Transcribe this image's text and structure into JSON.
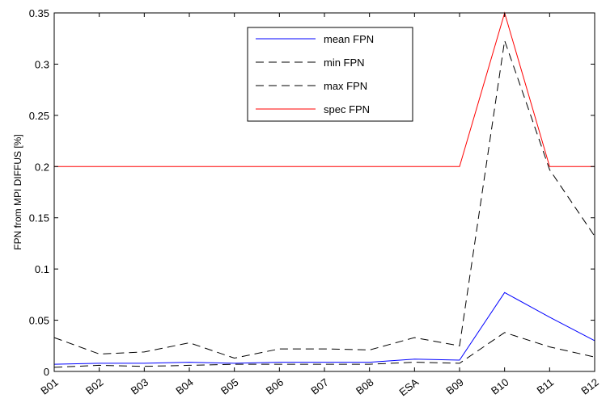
{
  "chart_data": {
    "type": "line",
    "categories": [
      "B01",
      "B02",
      "B03",
      "B04",
      "B05",
      "B06",
      "B07",
      "B08",
      "ESA",
      "B09",
      "B10",
      "B11",
      "B12"
    ],
    "ylabel": "FPN from MPI DIFFUS [%]",
    "xlabel": "",
    "title": "",
    "ylim": [
      0,
      0.35
    ],
    "yticks": [
      0,
      0.05,
      0.1,
      0.15,
      0.2,
      0.25,
      0.3,
      0.35
    ],
    "ytick_labels": [
      "0",
      "0.05",
      "0.1",
      "0.15",
      "0.2",
      "0.25",
      "0.3",
      "0.35"
    ],
    "grid": false,
    "legend_position": "top-center",
    "series": [
      {
        "name": "mean FPN",
        "color": "#0000ff",
        "dash": "solid",
        "values": [
          0.007,
          0.008,
          0.008,
          0.009,
          0.008,
          0.009,
          0.009,
          0.009,
          0.012,
          0.011,
          0.077,
          0.053,
          0.03
        ]
      },
      {
        "name": "min FPN",
        "color": "#000000",
        "dash": "dashed",
        "values": [
          0.004,
          0.006,
          0.005,
          0.006,
          0.007,
          0.007,
          0.007,
          0.007,
          0.009,
          0.008,
          0.038,
          0.024,
          0.014
        ]
      },
      {
        "name": "max FPN",
        "color": "#000000",
        "dash": "dashed",
        "values": [
          0.033,
          0.017,
          0.019,
          0.028,
          0.013,
          0.022,
          0.022,
          0.021,
          0.033,
          0.025,
          0.323,
          0.197,
          0.132
        ]
      },
      {
        "name": "spec FPN",
        "color": "#ff0000",
        "dash": "solid",
        "values": [
          0.2,
          0.2,
          0.2,
          0.2,
          0.2,
          0.2,
          0.2,
          0.2,
          0.2,
          0.2,
          0.35,
          0.2,
          0.2
        ]
      }
    ]
  }
}
